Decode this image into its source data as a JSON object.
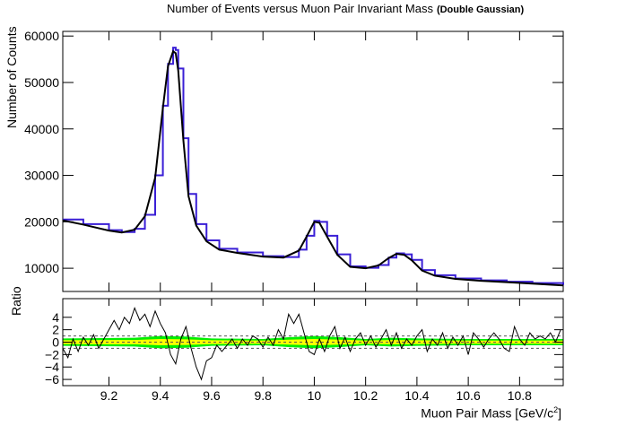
{
  "title": "Number of Events versus Muon Pair Invariant Mass",
  "subtitle": "(Double Gaussian)",
  "chart_data": [
    {
      "type": "line",
      "panel": "main",
      "ylabel": "Number of Counts",
      "xlim": [
        9.02,
        10.97
      ],
      "ylim": [
        5000,
        61000
      ],
      "y_ticks": [
        10000,
        20000,
        30000,
        40000,
        50000,
        60000
      ],
      "y_tick_labels": [
        "10000",
        "20000",
        "30000",
        "40000",
        "50000",
        "60000"
      ],
      "series_colors": {
        "histogram": "#3a1fd6",
        "fit": "#000000"
      },
      "histogram": {
        "x": [
          9.02,
          9.1,
          9.2,
          9.25,
          9.3,
          9.34,
          9.38,
          9.41,
          9.43,
          9.45,
          9.46,
          9.47,
          9.49,
          9.51,
          9.54,
          9.58,
          9.63,
          9.7,
          9.8,
          9.88,
          9.94,
          9.97,
          10.0,
          10.02,
          10.05,
          10.09,
          10.14,
          10.2,
          10.25,
          10.29,
          10.32,
          10.35,
          10.38,
          10.42,
          10.47,
          10.55,
          10.65,
          10.75,
          10.85,
          10.97
        ],
        "y": [
          20500,
          19500,
          18200,
          17800,
          18500,
          21500,
          30000,
          45000,
          54000,
          57500,
          57000,
          53000,
          38000,
          26000,
          19500,
          16000,
          14200,
          13400,
          12600,
          12400,
          14000,
          17000,
          20200,
          20000,
          17000,
          13000,
          10400,
          10100,
          10700,
          12300,
          13200,
          13000,
          11800,
          9600,
          8500,
          7800,
          7400,
          7100,
          6800,
          6400
        ]
      },
      "fit": {
        "x": [
          9.02,
          9.1,
          9.2,
          9.25,
          9.3,
          9.34,
          9.38,
          9.41,
          9.43,
          9.45,
          9.46,
          9.47,
          9.49,
          9.51,
          9.54,
          9.58,
          9.63,
          9.7,
          9.8,
          9.88,
          9.94,
          9.97,
          10.0,
          10.02,
          10.05,
          10.09,
          10.14,
          10.2,
          10.25,
          10.29,
          10.32,
          10.35,
          10.38,
          10.42,
          10.47,
          10.55,
          10.65,
          10.75,
          10.85,
          10.97
        ],
        "y": [
          20300,
          19400,
          18100,
          17700,
          18300,
          21200,
          29500,
          44500,
          53500,
          56700,
          56300,
          52500,
          37500,
          25500,
          19200,
          15800,
          14000,
          13300,
          12500,
          12300,
          13800,
          16800,
          20000,
          19800,
          16800,
          12900,
          10300,
          10000,
          10600,
          12200,
          13100,
          12900,
          11700,
          9500,
          8400,
          7700,
          7300,
          7000,
          6700,
          6300
        ]
      }
    },
    {
      "type": "line",
      "panel": "ratio",
      "ylabel": "Ratio",
      "xlabel": "Muon Pair Mass [GeV/c",
      "xlabel_sup": "2",
      "xlabel_end": "]",
      "xlim": [
        9.02,
        10.97
      ],
      "ylim": [
        -7,
        7
      ],
      "x_ticks": [
        9.2,
        9.4,
        9.6,
        9.8,
        10.0,
        10.2,
        10.4,
        10.6,
        10.8
      ],
      "x_tick_labels": [
        "9.2",
        "9.4",
        "9.6",
        "9.8",
        "10",
        "10.2",
        "10.4",
        "10.6",
        "10.8"
      ],
      "y_ticks": [
        -6,
        -4,
        -2,
        0,
        2,
        4
      ],
      "y_tick_labels": [
        "−6",
        "−4",
        "−2",
        "0",
        "2",
        "4"
      ],
      "reference_lines": [
        -1,
        0,
        1
      ],
      "band_colors": {
        "inner": "#ffff00",
        "outer": "#00ee00"
      },
      "bands": {
        "x": [
          9.02,
          9.3,
          9.4,
          9.5,
          9.6,
          9.8,
          9.9,
          10.0,
          10.1,
          10.2,
          10.3,
          10.4,
          10.6,
          10.97
        ],
        "outer": [
          0.6,
          0.7,
          1.0,
          0.9,
          0.6,
          0.5,
          0.8,
          1.0,
          0.8,
          0.5,
          0.7,
          0.6,
          0.5,
          0.5
        ],
        "inner": [
          0.3,
          0.35,
          0.5,
          0.45,
          0.3,
          0.25,
          0.4,
          0.5,
          0.4,
          0.25,
          0.35,
          0.3,
          0.25,
          0.25
        ]
      },
      "ratio": {
        "x": [
          9.02,
          9.04,
          9.06,
          9.08,
          9.1,
          9.12,
          9.14,
          9.16,
          9.18,
          9.2,
          9.22,
          9.24,
          9.26,
          9.28,
          9.3,
          9.32,
          9.34,
          9.36,
          9.38,
          9.4,
          9.42,
          9.44,
          9.46,
          9.48,
          9.5,
          9.52,
          9.54,
          9.56,
          9.58,
          9.6,
          9.62,
          9.64,
          9.66,
          9.68,
          9.7,
          9.72,
          9.74,
          9.76,
          9.78,
          9.8,
          9.82,
          9.84,
          9.86,
          9.88,
          9.9,
          9.92,
          9.94,
          9.96,
          9.98,
          10.0,
          10.02,
          10.04,
          10.06,
          10.08,
          10.1,
          10.12,
          10.14,
          10.16,
          10.18,
          10.2,
          10.22,
          10.24,
          10.26,
          10.28,
          10.3,
          10.32,
          10.34,
          10.36,
          10.38,
          10.4,
          10.42,
          10.44,
          10.46,
          10.48,
          10.5,
          10.52,
          10.54,
          10.56,
          10.58,
          10.6,
          10.62,
          10.64,
          10.66,
          10.68,
          10.7,
          10.72,
          10.74,
          10.76,
          10.78,
          10.8,
          10.82,
          10.84,
          10.86,
          10.88,
          10.9,
          10.92,
          10.94,
          10.96
        ],
        "y": [
          -1.0,
          -2.5,
          0.5,
          -1.5,
          0.8,
          -0.5,
          1.2,
          -1.0,
          0.5,
          2.0,
          3.5,
          2.0,
          4.0,
          3.0,
          5.5,
          3.5,
          4.5,
          2.5,
          5.0,
          3.0,
          1.5,
          -2.0,
          -3.5,
          0.5,
          2.5,
          -1.0,
          -4.0,
          -6.0,
          -3.0,
          -2.5,
          -0.5,
          -1.5,
          -0.5,
          0.5,
          -1.0,
          0.5,
          -0.5,
          1.0,
          0.5,
          -0.8,
          0.8,
          -0.5,
          2.0,
          0.5,
          4.5,
          3.0,
          4.5,
          1.5,
          -1.5,
          -2.0,
          0.5,
          -1.5,
          1.0,
          2.5,
          -1.0,
          0.8,
          -1.5,
          0.5,
          1.5,
          -0.5,
          1.0,
          -0.8,
          0.5,
          2.0,
          -0.5,
          1.5,
          -1.0,
          0.5,
          -0.5,
          1.0,
          2.0,
          -1.5,
          0.5,
          -0.5,
          1.5,
          -1.0,
          0.8,
          -0.5,
          1.0,
          -2.0,
          1.5,
          0.5,
          -0.8,
          0.5,
          1.5,
          0.5,
          -1.0,
          -1.5,
          2.5,
          0.5,
          -0.5,
          1.5,
          0.5,
          1.0,
          0.5,
          1.5,
          0.0,
          2.0
        ]
      }
    }
  ]
}
